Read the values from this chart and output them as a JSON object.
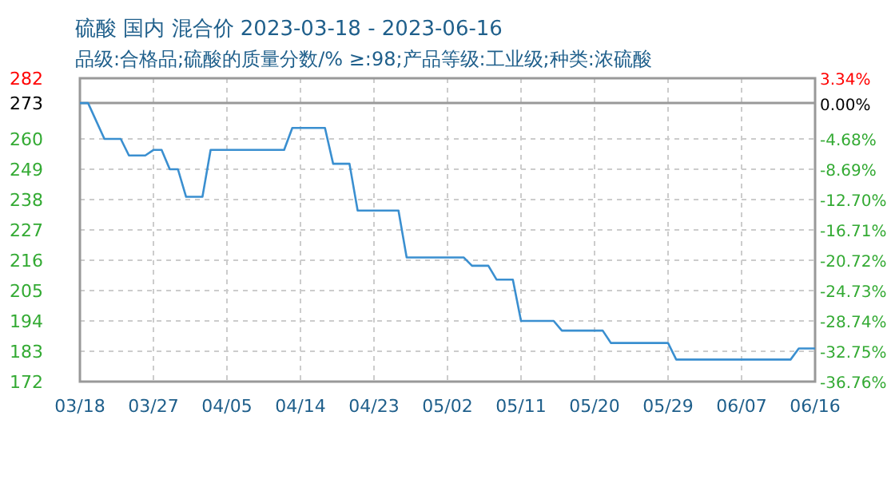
{
  "chart_data": {
    "type": "line",
    "title": "硫酸 国内 混合价 2023-03-18 - 2023-06-16",
    "subtitle": "品级:合格品;硫酸的质量分数/% ≥:98;产品等级:工业级;种类:浓硫酸",
    "x": [
      "2023-03-18",
      "2023-03-19",
      "2023-03-21",
      "2023-03-23",
      "2023-03-24",
      "2023-03-26",
      "2023-03-27",
      "2023-03-28",
      "2023-03-29",
      "2023-03-30",
      "2023-03-31",
      "2023-04-02",
      "2023-04-03",
      "2023-04-12",
      "2023-04-13",
      "2023-04-17",
      "2023-04-18",
      "2023-04-20",
      "2023-04-21",
      "2023-04-26",
      "2023-04-27",
      "2023-05-04",
      "2023-05-05",
      "2023-05-07",
      "2023-05-08",
      "2023-05-10",
      "2023-05-11",
      "2023-05-15",
      "2023-05-16",
      "2023-05-21",
      "2023-05-22",
      "2023-05-29",
      "2023-05-30",
      "2023-06-13",
      "2023-06-14",
      "2023-06-16"
    ],
    "series": [
      {
        "color": "#3a8fd0",
        "values": [
          273,
          273,
          260,
          260,
          254,
          254,
          256,
          256,
          249,
          249,
          239,
          239,
          256,
          256,
          264,
          264,
          251,
          251,
          234,
          234,
          217,
          217,
          214,
          214,
          209,
          209,
          194,
          194,
          190.5,
          190.5,
          186,
          186,
          180,
          180,
          184,
          184
        ]
      }
    ],
    "xlim": [
      "2023-03-18",
      "2023-06-16"
    ],
    "xticks": [
      {
        "value": "2023-03-18",
        "label": "03/18"
      },
      {
        "value": "2023-03-27",
        "label": "03/27"
      },
      {
        "value": "2023-04-05",
        "label": "04/05"
      },
      {
        "value": "2023-04-14",
        "label": "04/14"
      },
      {
        "value": "2023-04-23",
        "label": "04/23"
      },
      {
        "value": "2023-05-02",
        "label": "05/02"
      },
      {
        "value": "2023-05-11",
        "label": "05/11"
      },
      {
        "value": "2023-05-20",
        "label": "05/20"
      },
      {
        "value": "2023-05-29",
        "label": "05/29"
      },
      {
        "value": "2023-06-07",
        "label": "06/07"
      },
      {
        "value": "2023-06-16",
        "label": "06/16"
      }
    ],
    "ylim": [
      172,
      282
    ],
    "yticks": [
      172,
      183,
      194,
      205,
      216,
      227,
      238,
      249,
      260,
      273,
      282
    ],
    "y2lim": [
      -36.76,
      3.34
    ],
    "y2ticks": [
      {
        "value": -36.76,
        "label": "-36.76%"
      },
      {
        "value": -32.75,
        "label": "-32.75%"
      },
      {
        "value": -28.74,
        "label": "-28.74%"
      },
      {
        "value": -24.73,
        "label": "-24.73%"
      },
      {
        "value": -20.72,
        "label": "-20.72%"
      },
      {
        "value": -16.71,
        "label": "-16.71%"
      },
      {
        "value": -12.7,
        "label": "-12.70%"
      },
      {
        "value": -8.69,
        "label": "-8.69%"
      },
      {
        "value": -4.68,
        "label": "-4.68%"
      },
      {
        "value": 0,
        "label": "0.00%"
      },
      {
        "value": 3.34,
        "label": "3.34%"
      }
    ],
    "ref_lines": [
      {
        "axis": "y",
        "value": 273,
        "color": "#999999"
      }
    ],
    "grid": true,
    "line_style": "solid",
    "marker": "none"
  }
}
